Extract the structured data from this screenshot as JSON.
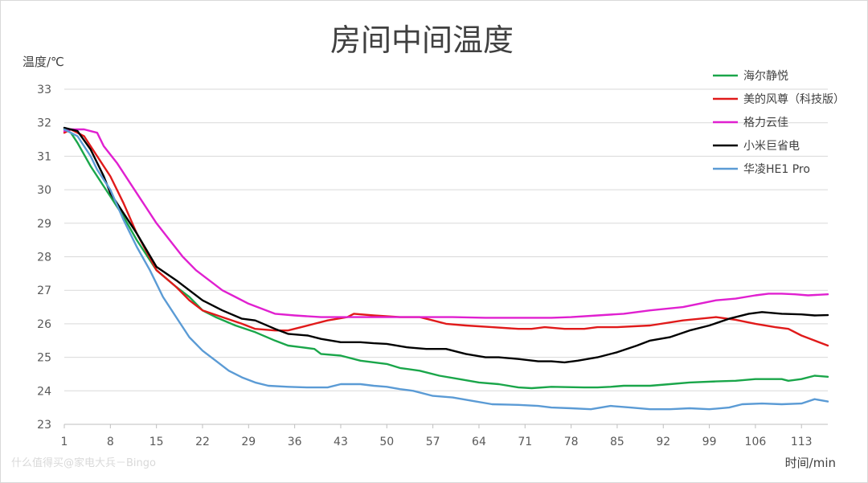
{
  "chart_data": {
    "type": "line",
    "title": "房间中间温度",
    "ylabel": "温度/℃",
    "xlabel": "时间/min",
    "ylim": [
      23,
      33
    ],
    "xlim": [
      1,
      117
    ],
    "yticks": [
      23,
      24,
      25,
      26,
      27,
      28,
      29,
      30,
      31,
      32,
      33
    ],
    "xticks": [
      1,
      8,
      15,
      22,
      29,
      36,
      43,
      50,
      57,
      64,
      71,
      78,
      85,
      92,
      99,
      106,
      113
    ],
    "grid": "horizontal",
    "legend_position": "top-right",
    "series": [
      {
        "name": "海尔静悦",
        "color": "#1aa64a",
        "points": [
          [
            1,
            31.8
          ],
          [
            2,
            31.7
          ],
          [
            3,
            31.4
          ],
          [
            5,
            30.7
          ],
          [
            7,
            30.1
          ],
          [
            8,
            29.8
          ],
          [
            10,
            29.2
          ],
          [
            12,
            28.5
          ],
          [
            15,
            27.6
          ],
          [
            18,
            27.1
          ],
          [
            20,
            26.8
          ],
          [
            22,
            26.4
          ],
          [
            24,
            26.2
          ],
          [
            27,
            25.95
          ],
          [
            30,
            25.75
          ],
          [
            33,
            25.5
          ],
          [
            35,
            25.35
          ],
          [
            37,
            25.3
          ],
          [
            39,
            25.25
          ],
          [
            40,
            25.1
          ],
          [
            43,
            25.05
          ],
          [
            46,
            24.9
          ],
          [
            50,
            24.8
          ],
          [
            52,
            24.68
          ],
          [
            55,
            24.6
          ],
          [
            58,
            24.45
          ],
          [
            61,
            24.35
          ],
          [
            64,
            24.25
          ],
          [
            67,
            24.2
          ],
          [
            70,
            24.1
          ],
          [
            72,
            24.08
          ],
          [
            75,
            24.12
          ],
          [
            80,
            24.1
          ],
          [
            82,
            24.1
          ],
          [
            84,
            24.12
          ],
          [
            86,
            24.15
          ],
          [
            90,
            24.15
          ],
          [
            93,
            24.2
          ],
          [
            96,
            24.25
          ],
          [
            100,
            24.28
          ],
          [
            103,
            24.3
          ],
          [
            106,
            24.35
          ],
          [
            110,
            24.35
          ],
          [
            111,
            24.3
          ],
          [
            113,
            24.35
          ],
          [
            115,
            24.45
          ],
          [
            117,
            24.42
          ]
        ]
      },
      {
        "name": "美的风尊（科技版）",
        "color": "#e01a1a",
        "points": [
          [
            1,
            31.7
          ],
          [
            2,
            31.8
          ],
          [
            4,
            31.6
          ],
          [
            6,
            31.0
          ],
          [
            8,
            30.4
          ],
          [
            10,
            29.6
          ],
          [
            12,
            28.7
          ],
          [
            15,
            27.6
          ],
          [
            18,
            27.1
          ],
          [
            20,
            26.7
          ],
          [
            22,
            26.4
          ],
          [
            25,
            26.2
          ],
          [
            28,
            26.0
          ],
          [
            30,
            25.85
          ],
          [
            33,
            25.8
          ],
          [
            35,
            25.8
          ],
          [
            37,
            25.9
          ],
          [
            39,
            26.0
          ],
          [
            41,
            26.1
          ],
          [
            44,
            26.2
          ],
          [
            45,
            26.3
          ],
          [
            48,
            26.25
          ],
          [
            52,
            26.2
          ],
          [
            55,
            26.2
          ],
          [
            57,
            26.1
          ],
          [
            59,
            26.0
          ],
          [
            62,
            25.95
          ],
          [
            66,
            25.9
          ],
          [
            70,
            25.85
          ],
          [
            72,
            25.85
          ],
          [
            74,
            25.9
          ],
          [
            77,
            25.85
          ],
          [
            80,
            25.85
          ],
          [
            82,
            25.9
          ],
          [
            85,
            25.9
          ],
          [
            90,
            25.95
          ],
          [
            95,
            26.1
          ],
          [
            100,
            26.2
          ],
          [
            103,
            26.12
          ],
          [
            106,
            26.0
          ],
          [
            109,
            25.9
          ],
          [
            111,
            25.85
          ],
          [
            113,
            25.65
          ],
          [
            115,
            25.5
          ],
          [
            117,
            25.35
          ]
        ]
      },
      {
        "name": "格力云佳",
        "color": "#e020d0",
        "points": [
          [
            1,
            31.75
          ],
          [
            2,
            31.8
          ],
          [
            4,
            31.8
          ],
          [
            6,
            31.7
          ],
          [
            7,
            31.3
          ],
          [
            9,
            30.8
          ],
          [
            11,
            30.2
          ],
          [
            13,
            29.6
          ],
          [
            15,
            29.0
          ],
          [
            17,
            28.5
          ],
          [
            19,
            28.0
          ],
          [
            21,
            27.6
          ],
          [
            23,
            27.3
          ],
          [
            25,
            27.0
          ],
          [
            27,
            26.8
          ],
          [
            29,
            26.6
          ],
          [
            31,
            26.45
          ],
          [
            33,
            26.3
          ],
          [
            36,
            26.25
          ],
          [
            40,
            26.2
          ],
          [
            43,
            26.2
          ],
          [
            46,
            26.2
          ],
          [
            50,
            26.2
          ],
          [
            55,
            26.2
          ],
          [
            60,
            26.2
          ],
          [
            65,
            26.18
          ],
          [
            70,
            26.18
          ],
          [
            75,
            26.18
          ],
          [
            78,
            26.2
          ],
          [
            82,
            26.25
          ],
          [
            86,
            26.3
          ],
          [
            90,
            26.4
          ],
          [
            95,
            26.5
          ],
          [
            100,
            26.7
          ],
          [
            103,
            26.75
          ],
          [
            106,
            26.85
          ],
          [
            108,
            26.9
          ],
          [
            110,
            26.9
          ],
          [
            112,
            26.88
          ],
          [
            114,
            26.85
          ],
          [
            117,
            26.88
          ]
        ]
      },
      {
        "name": "小米巨省电",
        "color": "#000000",
        "points": [
          [
            1,
            31.85
          ],
          [
            3,
            31.75
          ],
          [
            5,
            31.2
          ],
          [
            7,
            30.4
          ],
          [
            8,
            29.9
          ],
          [
            10,
            29.3
          ],
          [
            12,
            28.7
          ],
          [
            15,
            27.7
          ],
          [
            18,
            27.3
          ],
          [
            20,
            27.0
          ],
          [
            22,
            26.7
          ],
          [
            25,
            26.4
          ],
          [
            28,
            26.15
          ],
          [
            30,
            26.1
          ],
          [
            33,
            25.85
          ],
          [
            35,
            25.7
          ],
          [
            38,
            25.65
          ],
          [
            40,
            25.55
          ],
          [
            43,
            25.45
          ],
          [
            46,
            25.45
          ],
          [
            48,
            25.42
          ],
          [
            50,
            25.4
          ],
          [
            53,
            25.3
          ],
          [
            56,
            25.25
          ],
          [
            59,
            25.25
          ],
          [
            62,
            25.1
          ],
          [
            65,
            25.0
          ],
          [
            67,
            25.0
          ],
          [
            70,
            24.95
          ],
          [
            73,
            24.88
          ],
          [
            75,
            24.88
          ],
          [
            77,
            24.85
          ],
          [
            79,
            24.9
          ],
          [
            82,
            25.0
          ],
          [
            85,
            25.15
          ],
          [
            88,
            25.35
          ],
          [
            90,
            25.5
          ],
          [
            93,
            25.6
          ],
          [
            96,
            25.8
          ],
          [
            99,
            25.95
          ],
          [
            102,
            26.15
          ],
          [
            105,
            26.3
          ],
          [
            107,
            26.35
          ],
          [
            110,
            26.3
          ],
          [
            113,
            26.28
          ],
          [
            115,
            26.25
          ],
          [
            117,
            26.26
          ]
        ]
      },
      {
        "name": "华凌HE1 Pro",
        "color": "#5b9bd5",
        "points": [
          [
            1,
            31.8
          ],
          [
            3,
            31.6
          ],
          [
            5,
            31.0
          ],
          [
            6,
            30.6
          ],
          [
            8,
            30.0
          ],
          [
            10,
            29.1
          ],
          [
            12,
            28.3
          ],
          [
            14,
            27.6
          ],
          [
            16,
            26.8
          ],
          [
            18,
            26.2
          ],
          [
            20,
            25.6
          ],
          [
            22,
            25.2
          ],
          [
            24,
            24.9
          ],
          [
            26,
            24.6
          ],
          [
            28,
            24.4
          ],
          [
            30,
            24.25
          ],
          [
            32,
            24.15
          ],
          [
            35,
            24.12
          ],
          [
            38,
            24.1
          ],
          [
            41,
            24.1
          ],
          [
            43,
            24.2
          ],
          [
            46,
            24.2
          ],
          [
            48,
            24.15
          ],
          [
            50,
            24.12
          ],
          [
            52,
            24.05
          ],
          [
            54,
            24.0
          ],
          [
            57,
            23.85
          ],
          [
            60,
            23.8
          ],
          [
            63,
            23.7
          ],
          [
            66,
            23.6
          ],
          [
            70,
            23.58
          ],
          [
            73,
            23.55
          ],
          [
            75,
            23.5
          ],
          [
            78,
            23.48
          ],
          [
            81,
            23.45
          ],
          [
            84,
            23.55
          ],
          [
            87,
            23.5
          ],
          [
            90,
            23.45
          ],
          [
            93,
            23.45
          ],
          [
            96,
            23.48
          ],
          [
            99,
            23.45
          ],
          [
            102,
            23.5
          ],
          [
            104,
            23.6
          ],
          [
            107,
            23.62
          ],
          [
            110,
            23.6
          ],
          [
            113,
            23.62
          ],
          [
            115,
            23.75
          ],
          [
            117,
            23.68
          ]
        ]
      }
    ]
  },
  "watermark": "什么值得买@家电大兵－Bingo"
}
